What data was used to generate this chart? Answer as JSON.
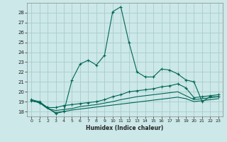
{
  "xlabel": "Humidex (Indice chaleur)",
  "bg_color": "#cce8e8",
  "grid_color": "#aacccc",
  "line_color": "#006655",
  "xlim": [
    -0.5,
    23.5
  ],
  "ylim": [
    17.5,
    29.0
  ],
  "yticks": [
    18,
    19,
    20,
    21,
    22,
    23,
    24,
    25,
    26,
    27,
    28
  ],
  "xticks": [
    0,
    1,
    2,
    3,
    4,
    5,
    6,
    7,
    8,
    9,
    10,
    11,
    12,
    13,
    14,
    15,
    16,
    17,
    18,
    19,
    20,
    21,
    22,
    23
  ],
  "line1_x": [
    0,
    1,
    2,
    3,
    4,
    5,
    6,
    7,
    8,
    9,
    10,
    11,
    12,
    13,
    14,
    15,
    16,
    17,
    18,
    19,
    20,
    21,
    22,
    23
  ],
  "line1_y": [
    19.2,
    19.0,
    18.4,
    17.8,
    18.0,
    21.2,
    22.8,
    23.2,
    22.7,
    23.7,
    28.1,
    28.6,
    25.0,
    22.0,
    21.5,
    21.5,
    22.3,
    22.2,
    21.8,
    21.2,
    21.0,
    19.0,
    19.5,
    19.5
  ],
  "line2_x": [
    0,
    1,
    2,
    3,
    4,
    5,
    6,
    7,
    8,
    9,
    10,
    11,
    12,
    13,
    14,
    15,
    16,
    17,
    18,
    19,
    20,
    21,
    22,
    23
  ],
  "line2_y": [
    19.1,
    18.9,
    18.4,
    18.4,
    18.6,
    18.7,
    18.8,
    18.9,
    19.0,
    19.2,
    19.5,
    19.7,
    20.0,
    20.1,
    20.2,
    20.3,
    20.5,
    20.6,
    20.8,
    20.4,
    19.4,
    19.5,
    19.6,
    19.7
  ],
  "line3_x": [
    0,
    1,
    2,
    3,
    4,
    5,
    6,
    7,
    8,
    9,
    10,
    11,
    12,
    13,
    14,
    15,
    16,
    17,
    18,
    19,
    20,
    21,
    22,
    23
  ],
  "line3_y": [
    19.1,
    18.9,
    18.3,
    18.1,
    18.2,
    18.3,
    18.5,
    18.6,
    18.7,
    18.85,
    19.0,
    19.2,
    19.35,
    19.5,
    19.6,
    19.7,
    19.8,
    19.9,
    20.0,
    19.6,
    19.2,
    19.3,
    19.4,
    19.5
  ],
  "line4_x": [
    0,
    1,
    2,
    3,
    4,
    5,
    6,
    7,
    8,
    9,
    10,
    11,
    12,
    13,
    14,
    15,
    16,
    17,
    18,
    19,
    20,
    21,
    22,
    23
  ],
  "line4_y": [
    19.1,
    18.9,
    18.3,
    17.9,
    18.0,
    18.15,
    18.25,
    18.35,
    18.45,
    18.55,
    18.65,
    18.75,
    18.85,
    18.95,
    19.05,
    19.15,
    19.25,
    19.35,
    19.45,
    19.3,
    19.0,
    19.1,
    19.2,
    19.3
  ]
}
